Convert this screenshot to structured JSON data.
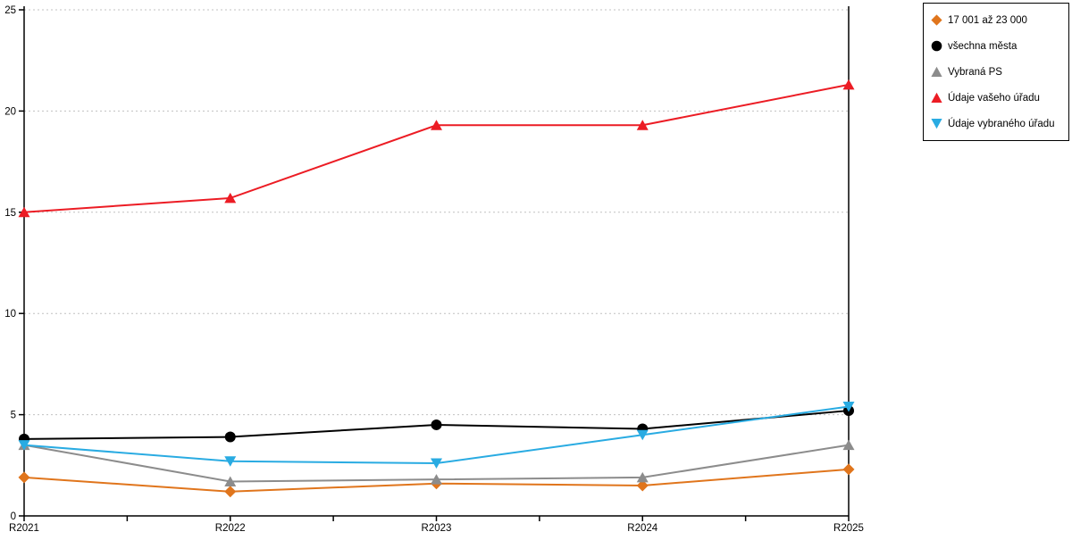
{
  "chart_data": {
    "type": "line",
    "title": "",
    "xlabel": "",
    "ylabel": "",
    "categories": [
      "R2021",
      "R2022",
      "R2023",
      "R2024",
      "R2025"
    ],
    "yticks": [
      "0",
      "5",
      "10",
      "15",
      "20",
      "25"
    ],
    "ylim": [
      0,
      25
    ],
    "grid": "horizontal-dashed",
    "gridline_color": "#c0c0c0",
    "axis_color": "#000000",
    "legend_position": "top-right",
    "series": [
      {
        "name": "17 001 až 23 000",
        "marker": "diamond",
        "color": "#E0751C",
        "values": [
          1.9,
          1.2,
          1.6,
          1.5,
          2.3
        ]
      },
      {
        "name": "všechna města",
        "marker": "circle",
        "color": "#000000",
        "values": [
          3.8,
          3.9,
          4.5,
          4.3,
          5.2
        ]
      },
      {
        "name": "Vybraná PS",
        "marker": "triangle-up",
        "color": "#8C8C8C",
        "values": [
          3.5,
          1.7,
          1.8,
          1.9,
          3.5
        ]
      },
      {
        "name": "Údaje vašeho úřadu",
        "marker": "triangle-up",
        "color": "#EC1C24",
        "values": [
          15.0,
          15.7,
          19.3,
          19.3,
          21.3
        ]
      },
      {
        "name": "Údaje vybraného úřadu",
        "marker": "triangle-down",
        "color": "#29ABE2",
        "values": [
          3.5,
          2.7,
          2.6,
          4.0,
          5.4
        ]
      }
    ]
  }
}
